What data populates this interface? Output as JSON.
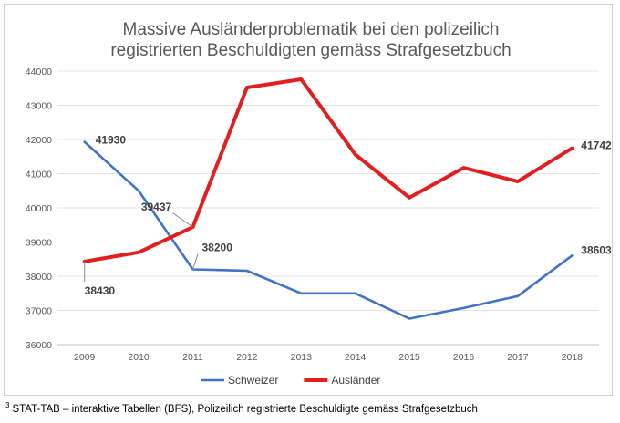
{
  "chart_data": {
    "type": "line",
    "title_lines": [
      "Massive Ausländerproblematik bei den polizeilich",
      "registrierten Beschuldigten gemäss Strafgesetzbuch"
    ],
    "x": [
      "2009",
      "2010",
      "2011",
      "2012",
      "2013",
      "2014",
      "2015",
      "2016",
      "2017",
      "2018"
    ],
    "ylim": [
      36000,
      44000
    ],
    "yticks": [
      36000,
      37000,
      38000,
      39000,
      40000,
      41000,
      42000,
      43000,
      44000
    ],
    "ytick_labels": [
      "36000",
      "37000",
      "38000",
      "39000",
      "40000",
      "41000",
      "42000",
      "43000",
      "44000"
    ],
    "grid": true,
    "legend_position": "bottom",
    "series": [
      {
        "name": "Schweizer",
        "color": "#4472c4",
        "values": [
          41930,
          40500,
          38200,
          38160,
          37500,
          37500,
          36760,
          37070,
          37420,
          38603
        ]
      },
      {
        "name": "Ausländer",
        "color": "#e02020",
        "values": [
          38430,
          38700,
          39437,
          43520,
          43760,
          41560,
          40300,
          41170,
          40770,
          41742
        ]
      }
    ],
    "annotations": [
      {
        "series": 0,
        "index": 0,
        "text": "41930"
      },
      {
        "series": 0,
        "index": 2,
        "text": "38200"
      },
      {
        "series": 0,
        "index": 9,
        "text": "38603"
      },
      {
        "series": 1,
        "index": 0,
        "text": "38430"
      },
      {
        "series": 1,
        "index": 2,
        "text": "39437"
      },
      {
        "series": 1,
        "index": 9,
        "text": "41742"
      }
    ]
  },
  "footnote": {
    "marker": "3",
    "text": "STAT-TAB – interaktive Tabellen (BFS), Polizeilich registrierte Beschuldigte gemäss Strafgesetzbuch"
  }
}
